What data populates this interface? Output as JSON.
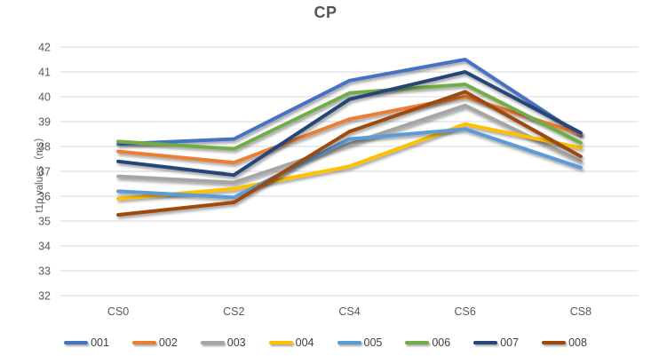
{
  "artifacts": {
    "left_edge_clipped_glyph": ")"
  },
  "chart_data": {
    "type": "line",
    "title": "CP",
    "xlabel": "",
    "ylabel": "t1ρ values（ms）",
    "categories": [
      "CS0",
      "CS2",
      "CS4",
      "CS6",
      "CS8"
    ],
    "ylim": [
      32,
      42
    ],
    "ytick_step": 1,
    "grid": true,
    "legend_position": "bottom",
    "gridline_color": "#D9D9D9",
    "tick_label_color": "#595959",
    "series": [
      {
        "name": "001",
        "color": "#4472C4",
        "values": [
          38.1,
          38.3,
          40.65,
          41.5,
          38.45
        ]
      },
      {
        "name": "002",
        "color": "#ED7D31",
        "values": [
          37.8,
          37.35,
          39.1,
          40.0,
          38.5
        ]
      },
      {
        "name": "003",
        "color": "#A5A5A5",
        "values": [
          36.8,
          36.55,
          38.1,
          39.65,
          37.4
        ]
      },
      {
        "name": "004",
        "color": "#FFC000",
        "values": [
          35.9,
          36.3,
          37.2,
          38.9,
          37.95
        ]
      },
      {
        "name": "005",
        "color": "#5B9BD5",
        "values": [
          36.2,
          35.95,
          38.3,
          38.7,
          37.15
        ]
      },
      {
        "name": "006",
        "color": "#70AD47",
        "values": [
          38.2,
          37.9,
          40.15,
          40.5,
          38.15
        ]
      },
      {
        "name": "007",
        "color": "#264478",
        "values": [
          37.4,
          36.85,
          39.9,
          41.0,
          38.55
        ]
      },
      {
        "name": "008",
        "color": "#9E480E",
        "values": [
          35.25,
          35.75,
          38.6,
          40.2,
          37.6
        ]
      }
    ]
  }
}
